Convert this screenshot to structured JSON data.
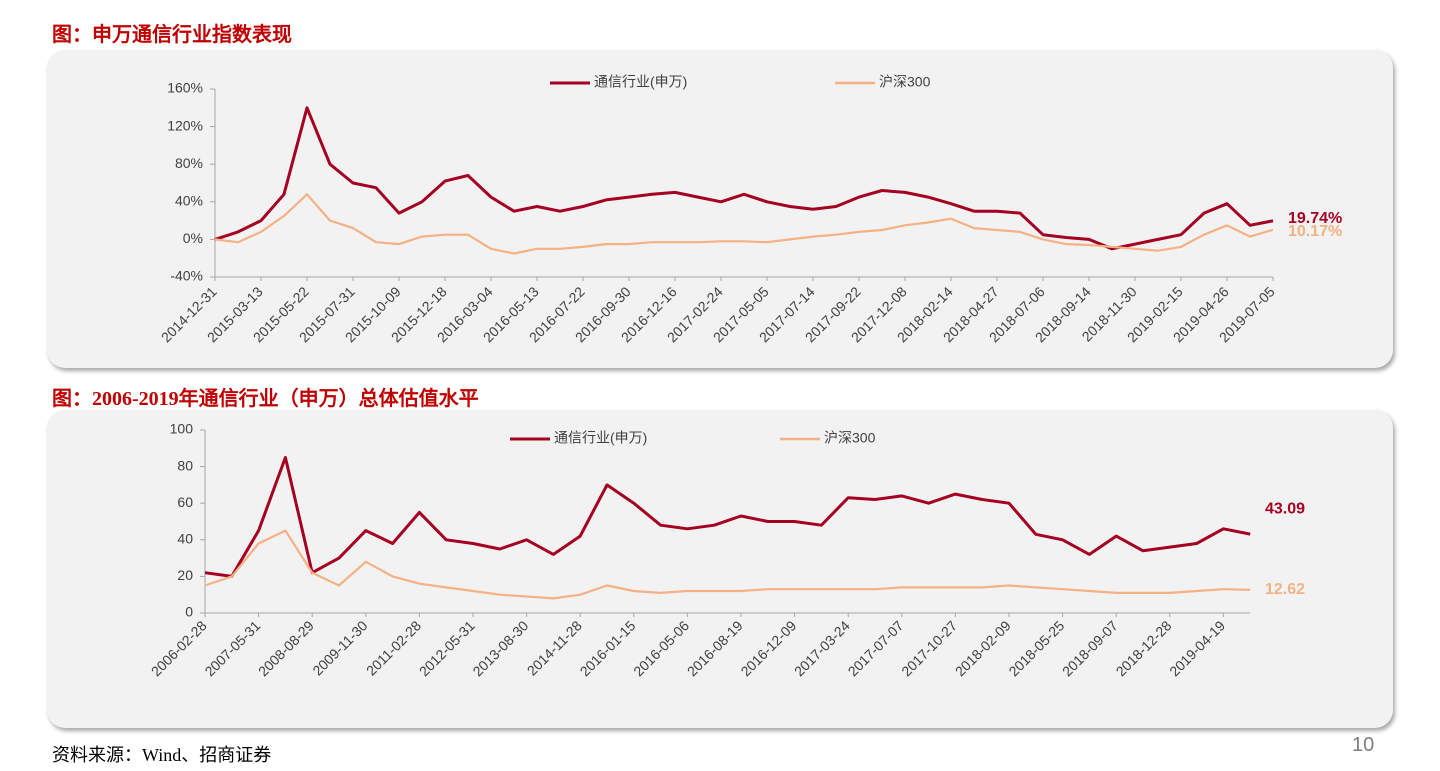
{
  "figure_titles": [
    "图：申万通信行业指数表现",
    "图：2006-2019年通信行业（申万）总体估值水平"
  ],
  "source": "资料来源：Wind、招商证券",
  "page_number": "10",
  "chart_data": [
    {
      "type": "line",
      "categories": [
        "2014-12-31",
        null,
        "2015-03-13",
        null,
        "2015-05-22",
        null,
        "2015-07-31",
        null,
        "2015-10-09",
        null,
        "2015-12-18",
        null,
        "2016-03-04",
        null,
        "2016-05-13",
        null,
        "2016-07-22",
        null,
        "2016-09-30",
        null,
        "2016-12-16",
        null,
        "2017-02-24",
        null,
        "2017-05-05",
        null,
        "2017-07-14",
        null,
        "2017-09-22",
        null,
        "2017-12-08",
        null,
        "2018-02-14",
        null,
        "2018-04-27",
        null,
        "2018-07-06",
        null,
        "2018-09-14",
        null,
        "2018-11-30",
        null,
        "2019-02-15",
        null,
        "2019-04-26",
        null,
        "2019-07-05"
      ],
      "series": [
        {
          "name": "通信行业(申万)",
          "color": "#a50021",
          "values": [
            0,
            8,
            20,
            48,
            140,
            80,
            60,
            55,
            28,
            40,
            62,
            68,
            45,
            30,
            35,
            30,
            35,
            42,
            45,
            48,
            50,
            45,
            40,
            48,
            40,
            35,
            32,
            35,
            45,
            52,
            50,
            45,
            38,
            30,
            30,
            28,
            5,
            2,
            0,
            -10,
            -5,
            0,
            5,
            28,
            38,
            15,
            19.74
          ],
          "value_labels": [
            null,
            null,
            null,
            null,
            null,
            null,
            null,
            null,
            null,
            null,
            null,
            null,
            null,
            null,
            null,
            null,
            null,
            null,
            null,
            null,
            null,
            null,
            null,
            null,
            null,
            null,
            null,
            null,
            null,
            null,
            null,
            null,
            null,
            null,
            null,
            null,
            null,
            null,
            null,
            null,
            null,
            null,
            null,
            null,
            null,
            null,
            "19.74%"
          ]
        },
        {
          "name": "沪深300",
          "color": "#f4b183",
          "values": [
            0,
            -3,
            8,
            25,
            48,
            20,
            12,
            -3,
            -5,
            3,
            5,
            5,
            -10,
            -15,
            -10,
            -10,
            -8,
            -5,
            -5,
            -3,
            -3,
            -3,
            -2,
            -2,
            -3,
            0,
            3,
            5,
            8,
            10,
            15,
            18,
            22,
            12,
            10,
            8,
            0,
            -5,
            -6,
            -8,
            -10,
            -12,
            -8,
            5,
            15,
            3,
            10.17
          ],
          "value_labels": [
            null,
            null,
            null,
            null,
            null,
            null,
            null,
            null,
            null,
            null,
            null,
            null,
            null,
            null,
            null,
            null,
            null,
            null,
            null,
            null,
            null,
            null,
            null,
            null,
            null,
            null,
            null,
            null,
            null,
            null,
            null,
            null,
            null,
            null,
            null,
            null,
            null,
            null,
            null,
            null,
            null,
            null,
            null,
            null,
            null,
            null,
            "10.17%"
          ]
        }
      ],
      "ylim": [
        -40,
        160
      ],
      "yticks": [
        {
          "value": -40,
          "label": "-40%"
        },
        {
          "value": 0,
          "label": "0%"
        },
        {
          "value": 40,
          "label": "40%"
        },
        {
          "value": 80,
          "label": "80%"
        },
        {
          "value": 120,
          "label": "120%"
        },
        {
          "value": 160,
          "label": "160%"
        }
      ],
      "grid": false,
      "legend": "top"
    },
    {
      "type": "line",
      "categories": [
        "2006-02-28",
        null,
        "2007-05-31",
        null,
        "2008-08-29",
        null,
        "2009-11-30",
        null,
        "2011-02-28",
        null,
        "2012-05-31",
        null,
        "2013-08-30",
        null,
        "2014-11-28",
        null,
        "2016-01-15",
        null,
        "2016-05-06",
        null,
        "2016-08-19",
        null,
        "2016-12-09",
        null,
        "2017-03-24",
        null,
        "2017-07-07",
        null,
        "2017-10-27",
        null,
        "2018-02-09",
        null,
        "2018-05-25",
        null,
        "2018-09-07",
        null,
        "2018-12-28",
        null,
        "2019-04-19",
        null
      ],
      "series": [
        {
          "name": "通信行业(申万)",
          "color": "#a50021",
          "values": [
            22,
            20,
            45,
            85,
            22,
            30,
            45,
            38,
            55,
            40,
            38,
            35,
            40,
            32,
            42,
            70,
            60,
            48,
            46,
            48,
            53,
            50,
            50,
            48,
            63,
            62,
            64,
            60,
            65,
            62,
            60,
            43,
            40,
            32,
            42,
            34,
            36,
            38,
            46,
            43.09
          ]
        },
        {
          "name": "沪深300",
          "color": "#f4b183",
          "values": [
            15,
            20,
            38,
            45,
            22,
            15,
            28,
            20,
            16,
            14,
            12,
            10,
            9,
            8,
            10,
            15,
            12,
            11,
            12,
            12,
            12,
            13,
            13,
            13,
            13,
            13,
            14,
            14,
            14,
            14,
            15,
            14,
            13,
            12,
            11,
            11,
            11,
            12,
            13,
            12.62
          ]
        }
      ],
      "ylim": [
        0,
        100
      ],
      "yticks": [
        0,
        20,
        40,
        60,
        80,
        100
      ],
      "grid": false,
      "legend": "top",
      "end_labels": true
    }
  ]
}
